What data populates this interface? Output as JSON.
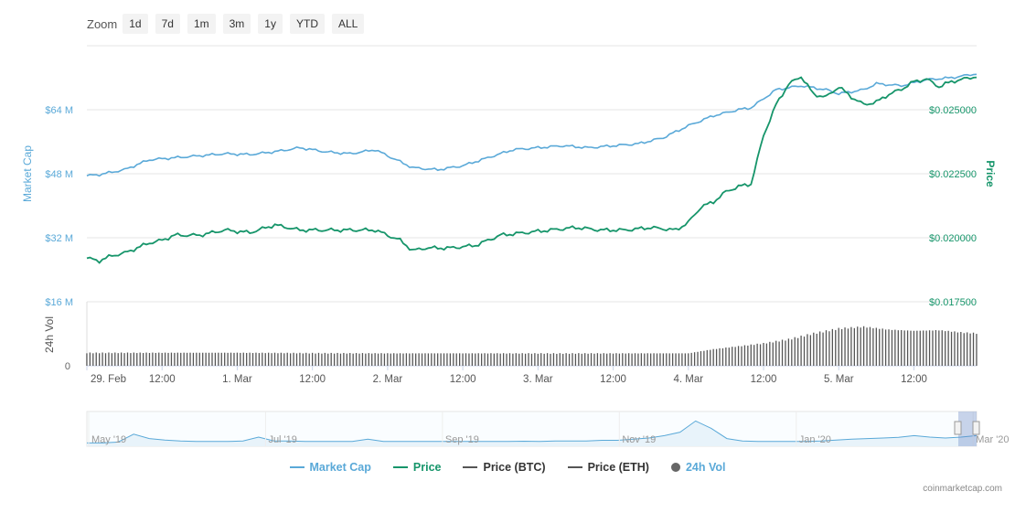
{
  "zoom": {
    "label": "Zoom",
    "buttons": [
      "1d",
      "7d",
      "1m",
      "3m",
      "1y",
      "YTD",
      "ALL"
    ]
  },
  "chart_data": {
    "type": "line",
    "x_tick_labels": [
      "29. Feb",
      "12:00",
      "1. Mar",
      "12:00",
      "2. Mar",
      "12:00",
      "3. Mar",
      "12:00",
      "4. Mar",
      "12:00",
      "5. Mar",
      "12:00"
    ],
    "x_range_hours": [
      0,
      142
    ],
    "left_axis": {
      "title": "Market Cap",
      "ticks": [
        "$16 M",
        "$32 M",
        "$48 M",
        "$64 M"
      ],
      "range": [
        16,
        80
      ],
      "unit": "M USD"
    },
    "right_axis": {
      "title": "Price",
      "ticks": [
        "$0.017500",
        "$0.020000",
        "$0.022500",
        "$0.025000"
      ],
      "range": [
        0.0175,
        0.0275
      ]
    },
    "volume_axis": {
      "title": "24h Vol",
      "ticks": [
        "0"
      ]
    },
    "series": [
      {
        "name": "Market Cap",
        "color": "#5aa9d8",
        "axis": "left",
        "x_hours": [
          0,
          2,
          6,
          10,
          14,
          18,
          22,
          26,
          30,
          34,
          38,
          42,
          46,
          50,
          52,
          56,
          60,
          64,
          68,
          72,
          76,
          80,
          84,
          88,
          92,
          96,
          100,
          104,
          106,
          110,
          114,
          118,
          120,
          124,
          126,
          130,
          134,
          138,
          142
        ],
        "values": [
          47.5,
          47.8,
          49.0,
          51.5,
          52.0,
          52.5,
          53.0,
          52.8,
          53.5,
          54.5,
          53.5,
          53.0,
          54.0,
          51.0,
          49.5,
          49.0,
          50.0,
          52.0,
          54.0,
          54.5,
          55.0,
          54.5,
          55.0,
          55.5,
          57.0,
          60.0,
          62.5,
          64.0,
          64.5,
          69.0,
          70.0,
          69.0,
          68.0,
          69.0,
          70.5,
          70.0,
          71.5,
          72.0,
          73.0
        ]
      },
      {
        "name": "Price",
        "color": "#16956a",
        "axis": "right",
        "x_hours": [
          0,
          2,
          4,
          6,
          8,
          10,
          12,
          14,
          18,
          22,
          26,
          30,
          34,
          38,
          42,
          46,
          50,
          52,
          54,
          58,
          62,
          66,
          70,
          74,
          78,
          82,
          86,
          90,
          94,
          96,
          98,
          100,
          102,
          104,
          106,
          108,
          110,
          112,
          114,
          116,
          118,
          120,
          122,
          124,
          126,
          128,
          130,
          132,
          134,
          136,
          138,
          140,
          142
        ],
        "values": [
          0.0192,
          0.0191,
          0.0193,
          0.0194,
          0.0196,
          0.0198,
          0.0199,
          0.0201,
          0.0201,
          0.0203,
          0.0202,
          0.0205,
          0.0203,
          0.0203,
          0.0203,
          0.0203,
          0.0199,
          0.0195,
          0.0196,
          0.0196,
          0.0197,
          0.0201,
          0.0202,
          0.0203,
          0.0204,
          0.0203,
          0.0203,
          0.0204,
          0.0203,
          0.0206,
          0.0212,
          0.0214,
          0.0218,
          0.022,
          0.0221,
          0.024,
          0.0252,
          0.026,
          0.0263,
          0.0256,
          0.0255,
          0.0259,
          0.0255,
          0.0252,
          0.0253,
          0.0256,
          0.0258,
          0.0261,
          0.0262,
          0.0259,
          0.0261,
          0.0262,
          0.0263
        ]
      },
      {
        "name": "Price (BTC)",
        "color": "#555555",
        "axis": "none",
        "values": []
      },
      {
        "name": "Price (ETH)",
        "color": "#555555",
        "axis": "none",
        "values": []
      },
      {
        "name": "24h Vol",
        "color": "#555555",
        "axis": "volume",
        "x_hours": [
          0,
          24,
          48,
          72,
          96,
          100,
          104,
          108,
          112,
          116,
          120,
          124,
          128,
          132,
          136,
          140,
          142
        ],
        "values_fraction_of_panel": [
          0.22,
          0.22,
          0.21,
          0.21,
          0.21,
          0.28,
          0.33,
          0.38,
          0.45,
          0.55,
          0.63,
          0.66,
          0.61,
          0.59,
          0.6,
          0.56,
          0.55
        ]
      }
    ],
    "legend": [
      {
        "name": "Market Cap",
        "color": "#5aa9d8",
        "shape": "line"
      },
      {
        "name": "Price",
        "color": "#16956a",
        "shape": "line"
      },
      {
        "name": "Price (BTC)",
        "color": "#555555",
        "shape": "line"
      },
      {
        "name": "Price (ETH)",
        "color": "#555555",
        "shape": "line"
      },
      {
        "name": "24h Vol",
        "color": "#666666",
        "shape": "dot"
      }
    ],
    "navigator": {
      "labels": [
        "May '19",
        "Jul '19",
        "Sep '19",
        "Nov '19",
        "Jan '20",
        "Mar '20"
      ],
      "series_color": "#5aa9d8",
      "profile": [
        0.05,
        0.05,
        0.08,
        0.35,
        0.2,
        0.15,
        0.12,
        0.1,
        0.1,
        0.1,
        0.12,
        0.25,
        0.12,
        0.12,
        0.1,
        0.1,
        0.1,
        0.1,
        0.18,
        0.1,
        0.1,
        0.1,
        0.1,
        0.1,
        0.1,
        0.1,
        0.1,
        0.1,
        0.11,
        0.1,
        0.12,
        0.12,
        0.12,
        0.14,
        0.14,
        0.18,
        0.22,
        0.3,
        0.42,
        0.8,
        0.55,
        0.2,
        0.12,
        0.1,
        0.1,
        0.1,
        0.1,
        0.12,
        0.15,
        0.18,
        0.2,
        0.22,
        0.24,
        0.3,
        0.25,
        0.22,
        0.25,
        0.3
      ]
    }
  },
  "credits": "coinmarketcap.com"
}
